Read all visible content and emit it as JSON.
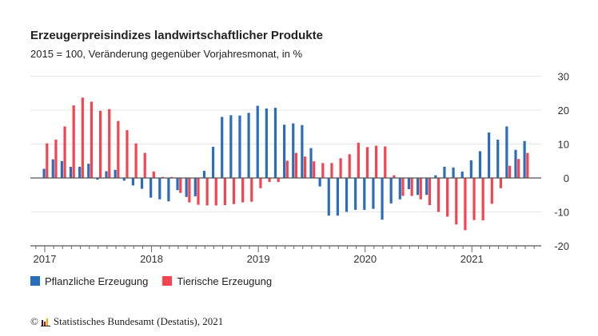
{
  "title": "Erzeugerpreisindizes landwirtschaftlicher Produkte",
  "subtitle": "2015 = 100, Veränderung gegenüber Vorjahresmonat, in %",
  "source": "Statistisches Bundesamt (Destatis), 2021",
  "copyright": "©",
  "chart_data": {
    "type": "bar",
    "title": "Erzeugerpreisindizes landwirtschaftlicher Produkte",
    "subtitle": "2015 = 100, Veränderung gegenüber Vorjahresmonat, in %",
    "x_start": "2017-01",
    "x_end": "2021-07",
    "frequency": "monthly",
    "x_tick_labels": [
      "2017",
      "2018",
      "2019",
      "2020",
      "2021"
    ],
    "y_ticks": [
      30,
      20,
      10,
      0,
      -10,
      -20
    ],
    "ylim": [
      -20,
      30
    ],
    "grid": true,
    "y_axis_side": "right",
    "legend_placement": "bottom-left",
    "series": [
      {
        "name": "Pflanzliche Erzeugung",
        "color": "#2a6ebb",
        "values": [
          2.7,
          5.5,
          5.0,
          3.3,
          3.3,
          4.2,
          -0.5,
          2.0,
          2.4,
          -0.8,
          -2.2,
          -3.2,
          -5.8,
          -6.3,
          -6.9,
          -3.6,
          -5.6,
          -5.4,
          2.1,
          9.2,
          18.0,
          18.5,
          18.4,
          19.2,
          21.3,
          20.5,
          20.7,
          15.7,
          16.1,
          15.6,
          8.8,
          -2.5,
          -11.1,
          -11.1,
          -10.0,
          -9.4,
          -9.4,
          -9.1,
          -12.3,
          -7.5,
          -6.3,
          -3.3,
          -5.0,
          -5.0,
          0.8,
          3.3,
          3.1,
          1.9,
          5.2,
          7.9,
          13.4,
          11.3,
          15.2,
          8.3,
          10.9
        ]
      },
      {
        "name": "Tierische Erzeugung",
        "color": "#f5434f",
        "values": [
          10.2,
          11.3,
          15.2,
          21.4,
          23.7,
          22.5,
          19.8,
          20.3,
          16.8,
          14.1,
          10.2,
          7.4,
          1.9,
          0.3,
          0.3,
          -4.4,
          -7.2,
          -7.9,
          -8.1,
          -8.1,
          -8.0,
          -7.7,
          -7.2,
          -7.0,
          -3.0,
          -1.2,
          -1.2,
          5.1,
          7.4,
          6.3,
          4.9,
          4.4,
          4.4,
          5.8,
          7.0,
          10.4,
          9.1,
          9.5,
          9.3,
          0.8,
          -5.3,
          -5.3,
          -6.3,
          -8.0,
          -10.0,
          -11.4,
          -13.7,
          -15.4,
          -12.4,
          -12.5,
          -7.6,
          -3.0,
          3.6,
          5.6,
          7.4
        ]
      }
    ]
  }
}
